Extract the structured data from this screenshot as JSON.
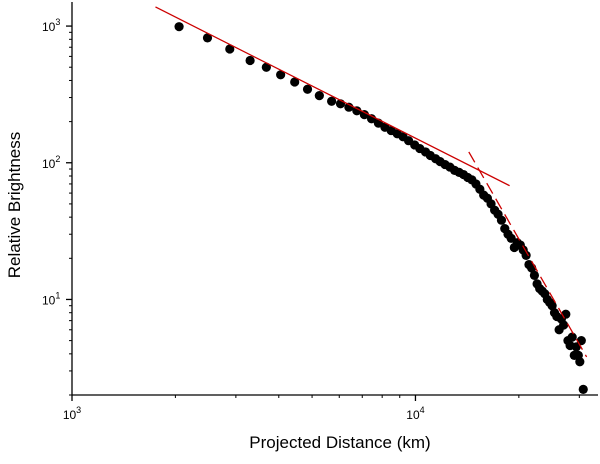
{
  "chart_data": {
    "type": "scatter",
    "title": "",
    "xlabel": "Projected Distance (km)",
    "ylabel": "Relative Brightness",
    "x_scale": "log",
    "y_scale": "log",
    "xlim": [
      1000,
      34000
    ],
    "ylim": [
      2,
      1500
    ],
    "x_ticks": [
      {
        "value": 1000,
        "base": "10",
        "exp": "3"
      },
      {
        "value": 10000,
        "base": "10",
        "exp": "4"
      }
    ],
    "y_ticks": [
      {
        "value": 10,
        "base": "10",
        "exp": "1"
      },
      {
        "value": 100,
        "base": "10",
        "exp": "2"
      },
      {
        "value": 1000,
        "base": "10",
        "exp": "3"
      }
    ],
    "grid": false,
    "legend": "none",
    "colors": {
      "points": "#000000",
      "fit": "#cc0000",
      "axis": "#000000"
    },
    "series": [
      {
        "kind": "points",
        "x": [
          2050,
          2480,
          2880,
          3300,
          3680,
          4050,
          4450,
          4850,
          5250,
          5700,
          6050,
          6400,
          6750,
          7100,
          7450,
          7800,
          8150,
          8500,
          8850,
          9200,
          9550,
          9950,
          10300,
          10700,
          11050,
          11450,
          11800,
          12200,
          12600,
          13000,
          13400,
          13800,
          14200,
          14600,
          15000,
          15400,
          15800,
          16200,
          16600,
          17000,
          17400,
          17800,
          18200,
          18600,
          19000,
          19400,
          19800,
          20200,
          20600,
          21000,
          21400,
          21800,
          22200,
          22600,
          23000,
          23400,
          23800,
          24200,
          24600,
          25000,
          25400,
          25800,
          26200,
          26600,
          27000,
          27400,
          27800,
          28200,
          28600,
          29000,
          29400,
          29800,
          30100,
          30400,
          30800
        ],
        "y": [
          990,
          820,
          680,
          560,
          500,
          440,
          390,
          345,
          310,
          282,
          270,
          255,
          240,
          225,
          210,
          195,
          182,
          172,
          163,
          155,
          145,
          135,
          127,
          120,
          113,
          107,
          102,
          97,
          93,
          88,
          85,
          82,
          78,
          75,
          70,
          64,
          58,
          55,
          50,
          45,
          42,
          38,
          33,
          30,
          28,
          24,
          26,
          25,
          23,
          21,
          18,
          17,
          15,
          13,
          12,
          11.5,
          11,
          10,
          9.5,
          9,
          8,
          7.5,
          6,
          7.2,
          6.5,
          7.8,
          5,
          4.6,
          5.3,
          3.9,
          4.5,
          3.9,
          3.5,
          5,
          2.2
        ]
      },
      {
        "kind": "fit",
        "style": "solid",
        "x": [
          1750,
          18800
        ],
        "y": [
          1380,
          68
        ]
      },
      {
        "kind": "fit",
        "style": "dashed",
        "x": [
          14300,
          31500
        ],
        "y": [
          120,
          3.8
        ]
      }
    ]
  }
}
